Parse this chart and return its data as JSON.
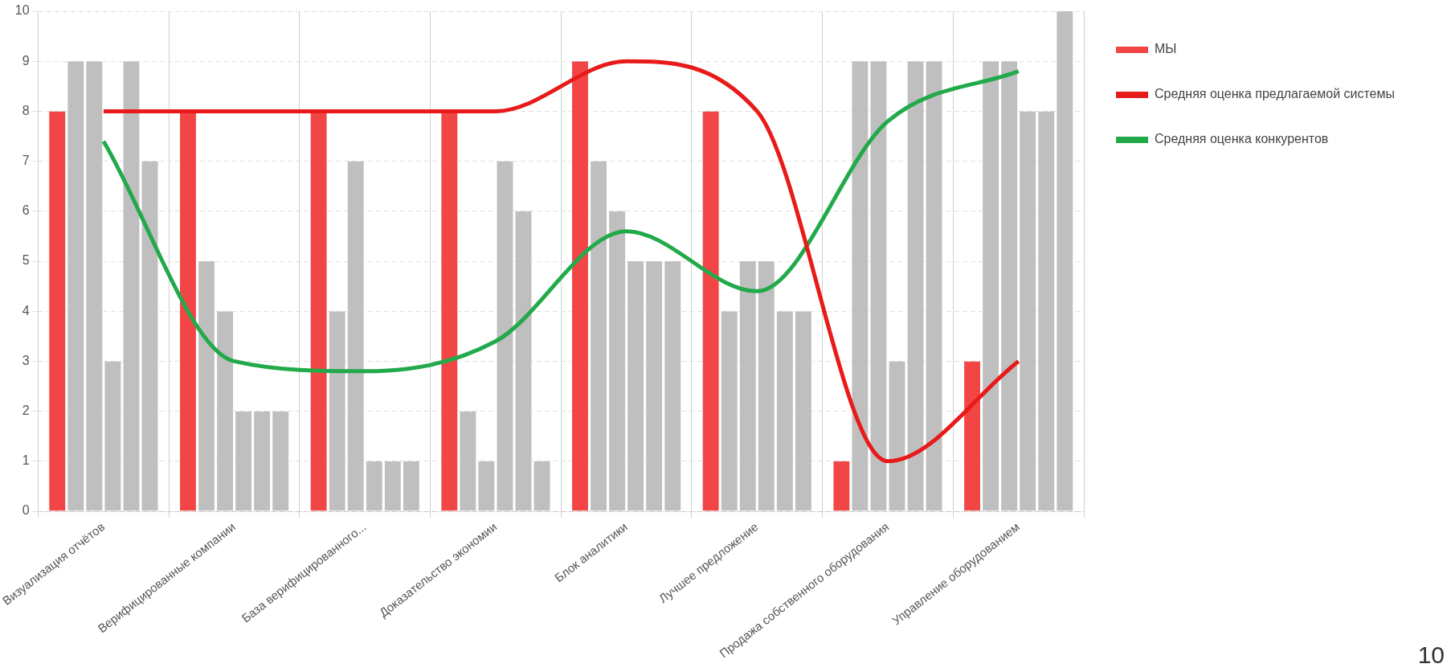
{
  "chart_data": {
    "type": "bar",
    "categories": [
      "Визуализация отчётов",
      "Верифицированные компании",
      "База верифицированного...",
      "Доказательство экономии",
      "Блок аналитики",
      "Лучшее предложение",
      "Продажа собственного оборудования",
      "Управление оборудованием"
    ],
    "series": [
      {
        "name": "МЫ",
        "color": "#f24646",
        "values": [
          8,
          8,
          8,
          8,
          9,
          8,
          1,
          3
        ]
      },
      {
        "color": "#bfbfbf",
        "values": [
          9,
          5,
          4,
          2,
          7,
          4,
          9,
          9
        ]
      },
      {
        "color": "#bfbfbf",
        "values": [
          9,
          4,
          7,
          1,
          6,
          5,
          9,
          9
        ]
      },
      {
        "color": "#bfbfbf",
        "values": [
          3,
          2,
          1,
          7,
          5,
          5,
          3,
          8
        ]
      },
      {
        "color": "#bfbfbf",
        "values": [
          9,
          2,
          1,
          6,
          5,
          4,
          9,
          8
        ]
      },
      {
        "color": "#bfbfbf",
        "values": [
          7,
          2,
          1,
          1,
          5,
          4,
          9,
          10
        ]
      },
      {
        "name": "Средняя оценка предлагаемой системы",
        "type": "line",
        "color": "#e81a1a",
        "values": [
          8,
          8,
          8,
          8,
          9,
          8,
          1,
          3
        ]
      },
      {
        "name": "Средняя оценка конкурентов",
        "type": "line",
        "color": "#22aa4a",
        "values": [
          7.4,
          3,
          2.8,
          3.4,
          5.6,
          4.4,
          7.8,
          8.8
        ]
      }
    ],
    "ylim": [
      0,
      10
    ],
    "yticks": [
      0,
      1,
      2,
      3,
      4,
      5,
      6,
      7,
      8,
      9,
      10
    ],
    "grid": true,
    "legend": "right",
    "marker": "none",
    "annotations": [
      "10"
    ]
  }
}
